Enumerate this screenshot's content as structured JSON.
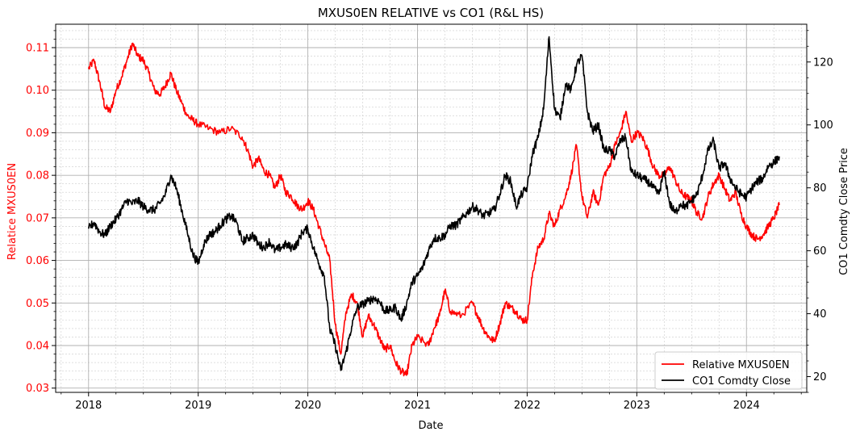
{
  "chart_data": {
    "type": "line",
    "title": "MXUS0EN RELATIVE vs CO1 (R&L HS)",
    "xlabel": "Date",
    "ylabel_left": "Relatice MXUS0EN",
    "ylabel_right": "CO1 Comdty Close Price",
    "x_ticks": [
      "2018",
      "2019",
      "2020",
      "2021",
      "2022",
      "2023",
      "2024"
    ],
    "xlim": [
      2017.7,
      2024.55
    ],
    "ylim_left": [
      0.029,
      0.1155
    ],
    "ylim_right": [
      15,
      132
    ],
    "y_ticks_left": [
      "0.03",
      "0.04",
      "0.05",
      "0.06",
      "0.07",
      "0.08",
      "0.09",
      "0.10",
      "0.11"
    ],
    "y_ticks_right": [
      "20",
      "40",
      "60",
      "80",
      "100",
      "120"
    ],
    "grid": "on",
    "legend_position": "lower-right",
    "colors": {
      "left_axis": "#ff0000",
      "right_axis": "#000000"
    },
    "series": [
      {
        "name": "Relative MXUS0EN",
        "axis": "left",
        "color": "#ff0000",
        "x": [
          2018.0,
          2018.05,
          2018.1,
          2018.15,
          2018.2,
          2018.25,
          2018.3,
          2018.35,
          2018.4,
          2018.45,
          2018.5,
          2018.55,
          2018.6,
          2018.65,
          2018.7,
          2018.75,
          2018.8,
          2018.85,
          2018.9,
          2018.95,
          2019.0,
          2019.1,
          2019.2,
          2019.3,
          2019.4,
          2019.45,
          2019.5,
          2019.55,
          2019.6,
          2019.65,
          2019.7,
          2019.75,
          2019.8,
          2019.85,
          2019.9,
          2019.95,
          2020.0,
          2020.05,
          2020.1,
          2020.15,
          2020.2,
          2020.25,
          2020.3,
          2020.35,
          2020.4,
          2020.45,
          2020.5,
          2020.55,
          2020.6,
          2020.65,
          2020.7,
          2020.75,
          2020.8,
          2020.85,
          2020.9,
          2020.95,
          2021.0,
          2021.1,
          2021.15,
          2021.2,
          2021.25,
          2021.3,
          2021.4,
          2021.5,
          2021.55,
          2021.6,
          2021.65,
          2021.7,
          2021.75,
          2021.8,
          2021.85,
          2021.9,
          2021.95,
          2022.0,
          2022.05,
          2022.1,
          2022.15,
          2022.2,
          2022.25,
          2022.3,
          2022.35,
          2022.4,
          2022.45,
          2022.5,
          2022.55,
          2022.6,
          2022.65,
          2022.7,
          2022.75,
          2022.8,
          2022.85,
          2022.9,
          2022.95,
          2023.0,
          2023.05,
          2023.1,
          2023.15,
          2023.2,
          2023.25,
          2023.3,
          2023.35,
          2023.4,
          2023.45,
          2023.5,
          2023.55,
          2023.6,
          2023.65,
          2023.7,
          2023.75,
          2023.8,
          2023.85,
          2023.9,
          2023.95,
          2024.0,
          2024.05,
          2024.1,
          2024.15,
          2024.2,
          2024.25,
          2024.3
        ],
        "y": [
          0.105,
          0.107,
          0.102,
          0.096,
          0.095,
          0.1,
          0.103,
          0.107,
          0.111,
          0.108,
          0.107,
          0.104,
          0.1,
          0.099,
          0.101,
          0.104,
          0.1,
          0.097,
          0.094,
          0.093,
          0.092,
          0.091,
          0.09,
          0.091,
          0.089,
          0.086,
          0.082,
          0.084,
          0.081,
          0.08,
          0.077,
          0.08,
          0.076,
          0.075,
          0.073,
          0.072,
          0.074,
          0.072,
          0.068,
          0.064,
          0.06,
          0.045,
          0.038,
          0.048,
          0.052,
          0.05,
          0.042,
          0.047,
          0.045,
          0.042,
          0.039,
          0.04,
          0.036,
          0.034,
          0.033,
          0.04,
          0.042,
          0.04,
          0.044,
          0.047,
          0.053,
          0.048,
          0.047,
          0.05,
          0.047,
          0.044,
          0.042,
          0.041,
          0.045,
          0.05,
          0.049,
          0.048,
          0.046,
          0.046,
          0.057,
          0.063,
          0.065,
          0.071,
          0.068,
          0.072,
          0.075,
          0.08,
          0.087,
          0.075,
          0.07,
          0.076,
          0.073,
          0.08,
          0.082,
          0.087,
          0.09,
          0.095,
          0.088,
          0.09,
          0.089,
          0.086,
          0.082,
          0.08,
          0.08,
          0.082,
          0.079,
          0.076,
          0.075,
          0.074,
          0.071,
          0.07,
          0.075,
          0.078,
          0.08,
          0.077,
          0.074,
          0.076,
          0.071,
          0.068,
          0.066,
          0.065,
          0.066,
          0.068,
          0.07,
          0.073
        ]
      },
      {
        "name": "CO1 Comdty Close",
        "axis": "right",
        "color": "#000000",
        "x": [
          2018.0,
          2018.05,
          2018.1,
          2018.15,
          2018.2,
          2018.25,
          2018.3,
          2018.35,
          2018.4,
          2018.45,
          2018.5,
          2018.55,
          2018.6,
          2018.65,
          2018.7,
          2018.75,
          2018.8,
          2018.85,
          2018.9,
          2018.95,
          2019.0,
          2019.05,
          2019.1,
          2019.15,
          2019.2,
          2019.25,
          2019.3,
          2019.35,
          2019.4,
          2019.45,
          2019.5,
          2019.55,
          2019.6,
          2019.65,
          2019.7,
          2019.75,
          2019.8,
          2019.85,
          2019.9,
          2019.95,
          2020.0,
          2020.05,
          2020.1,
          2020.15,
          2020.2,
          2020.25,
          2020.3,
          2020.35,
          2020.4,
          2020.45,
          2020.5,
          2020.55,
          2020.6,
          2020.65,
          2020.7,
          2020.75,
          2020.8,
          2020.85,
          2020.9,
          2020.95,
          2021.0,
          2021.05,
          2021.1,
          2021.15,
          2021.2,
          2021.25,
          2021.3,
          2021.35,
          2021.4,
          2021.45,
          2021.5,
          2021.55,
          2021.6,
          2021.65,
          2021.7,
          2021.75,
          2021.8,
          2021.85,
          2021.9,
          2021.95,
          2022.0,
          2022.05,
          2022.1,
          2022.15,
          2022.2,
          2022.25,
          2022.3,
          2022.35,
          2022.4,
          2022.45,
          2022.5,
          2022.55,
          2022.6,
          2022.65,
          2022.7,
          2022.75,
          2022.8,
          2022.85,
          2022.9,
          2022.95,
          2023.0,
          2023.05,
          2023.1,
          2023.15,
          2023.2,
          2023.25,
          2023.3,
          2023.35,
          2023.4,
          2023.45,
          2023.5,
          2023.55,
          2023.6,
          2023.65,
          2023.7,
          2023.75,
          2023.8,
          2023.85,
          2023.9,
          2023.95,
          2024.0,
          2024.05,
          2024.1,
          2024.15,
          2024.2,
          2024.25,
          2024.3
        ],
        "y": [
          67,
          69,
          66,
          65,
          68,
          70,
          73,
          76,
          75,
          76,
          74,
          73,
          73,
          75,
          78,
          84,
          80,
          73,
          66,
          59,
          56,
          62,
          65,
          66,
          68,
          70,
          71,
          69,
          63,
          64,
          65,
          62,
          61,
          63,
          60,
          61,
          62,
          61,
          62,
          66,
          67,
          61,
          56,
          52,
          35,
          30,
          22,
          28,
          36,
          42,
          43,
          44,
          45,
          44,
          41,
          41,
          42,
          38,
          43,
          50,
          52,
          55,
          60,
          64,
          64,
          65,
          68,
          68,
          70,
          72,
          74,
          73,
          71,
          72,
          73,
          78,
          84,
          82,
          74,
          78,
          80,
          91,
          96,
          105,
          128,
          105,
          102,
          113,
          111,
          119,
          122,
          104,
          98,
          100,
          92,
          92,
          90,
          95,
          96,
          85,
          84,
          83,
          82,
          80,
          78,
          85,
          75,
          72,
          75,
          74,
          76,
          78,
          84,
          92,
          95,
          86,
          88,
          83,
          80,
          78,
          77,
          80,
          82,
          83,
          87,
          88,
          90
        ]
      }
    ]
  }
}
